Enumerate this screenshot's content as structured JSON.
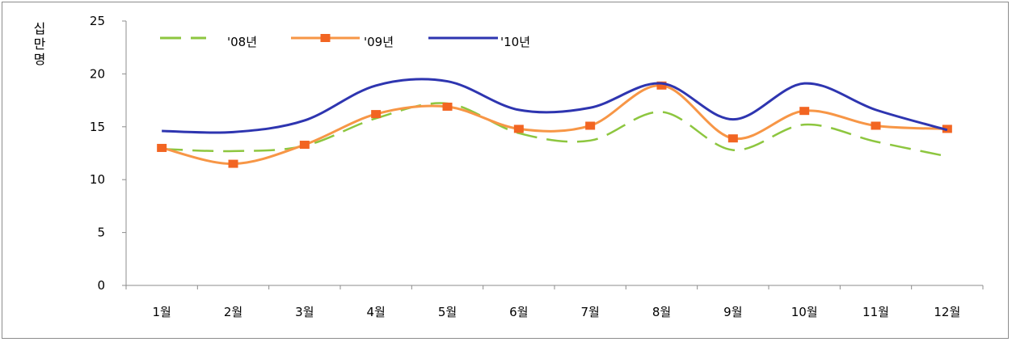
{
  "chart_data": {
    "type": "line",
    "title": "",
    "xlabel": "",
    "ylabel": "십만명",
    "ylim": [
      0,
      25
    ],
    "yticks": [
      0,
      5,
      10,
      15,
      20,
      25
    ],
    "grid": false,
    "legend_position": "top-left",
    "categories": [
      "1월",
      "2월",
      "3월",
      "4월",
      "5월",
      "6월",
      "7월",
      "8월",
      "9월",
      "10월",
      "11월",
      "12월"
    ],
    "series": [
      {
        "name": "'08년",
        "color": "#8dc63f",
        "style": "dashed",
        "marker": "none",
        "values": [
          12.9,
          12.7,
          13.2,
          15.8,
          17.2,
          14.4,
          13.7,
          16.4,
          12.8,
          15.2,
          13.6,
          12.2
        ]
      },
      {
        "name": "'09년",
        "color": "#f79646",
        "marker_color": "#f26522",
        "style": "solid",
        "marker": "square",
        "values": [
          13.0,
          11.5,
          13.3,
          16.2,
          16.9,
          14.8,
          15.1,
          18.9,
          13.9,
          16.5,
          15.1,
          14.8
        ]
      },
      {
        "name": "'10년",
        "color": "#2e35b0",
        "style": "solid",
        "marker": "none",
        "values": [
          14.6,
          14.5,
          15.6,
          18.9,
          19.3,
          16.6,
          16.8,
          19.1,
          15.7,
          19.1,
          16.6,
          14.7
        ]
      }
    ]
  }
}
